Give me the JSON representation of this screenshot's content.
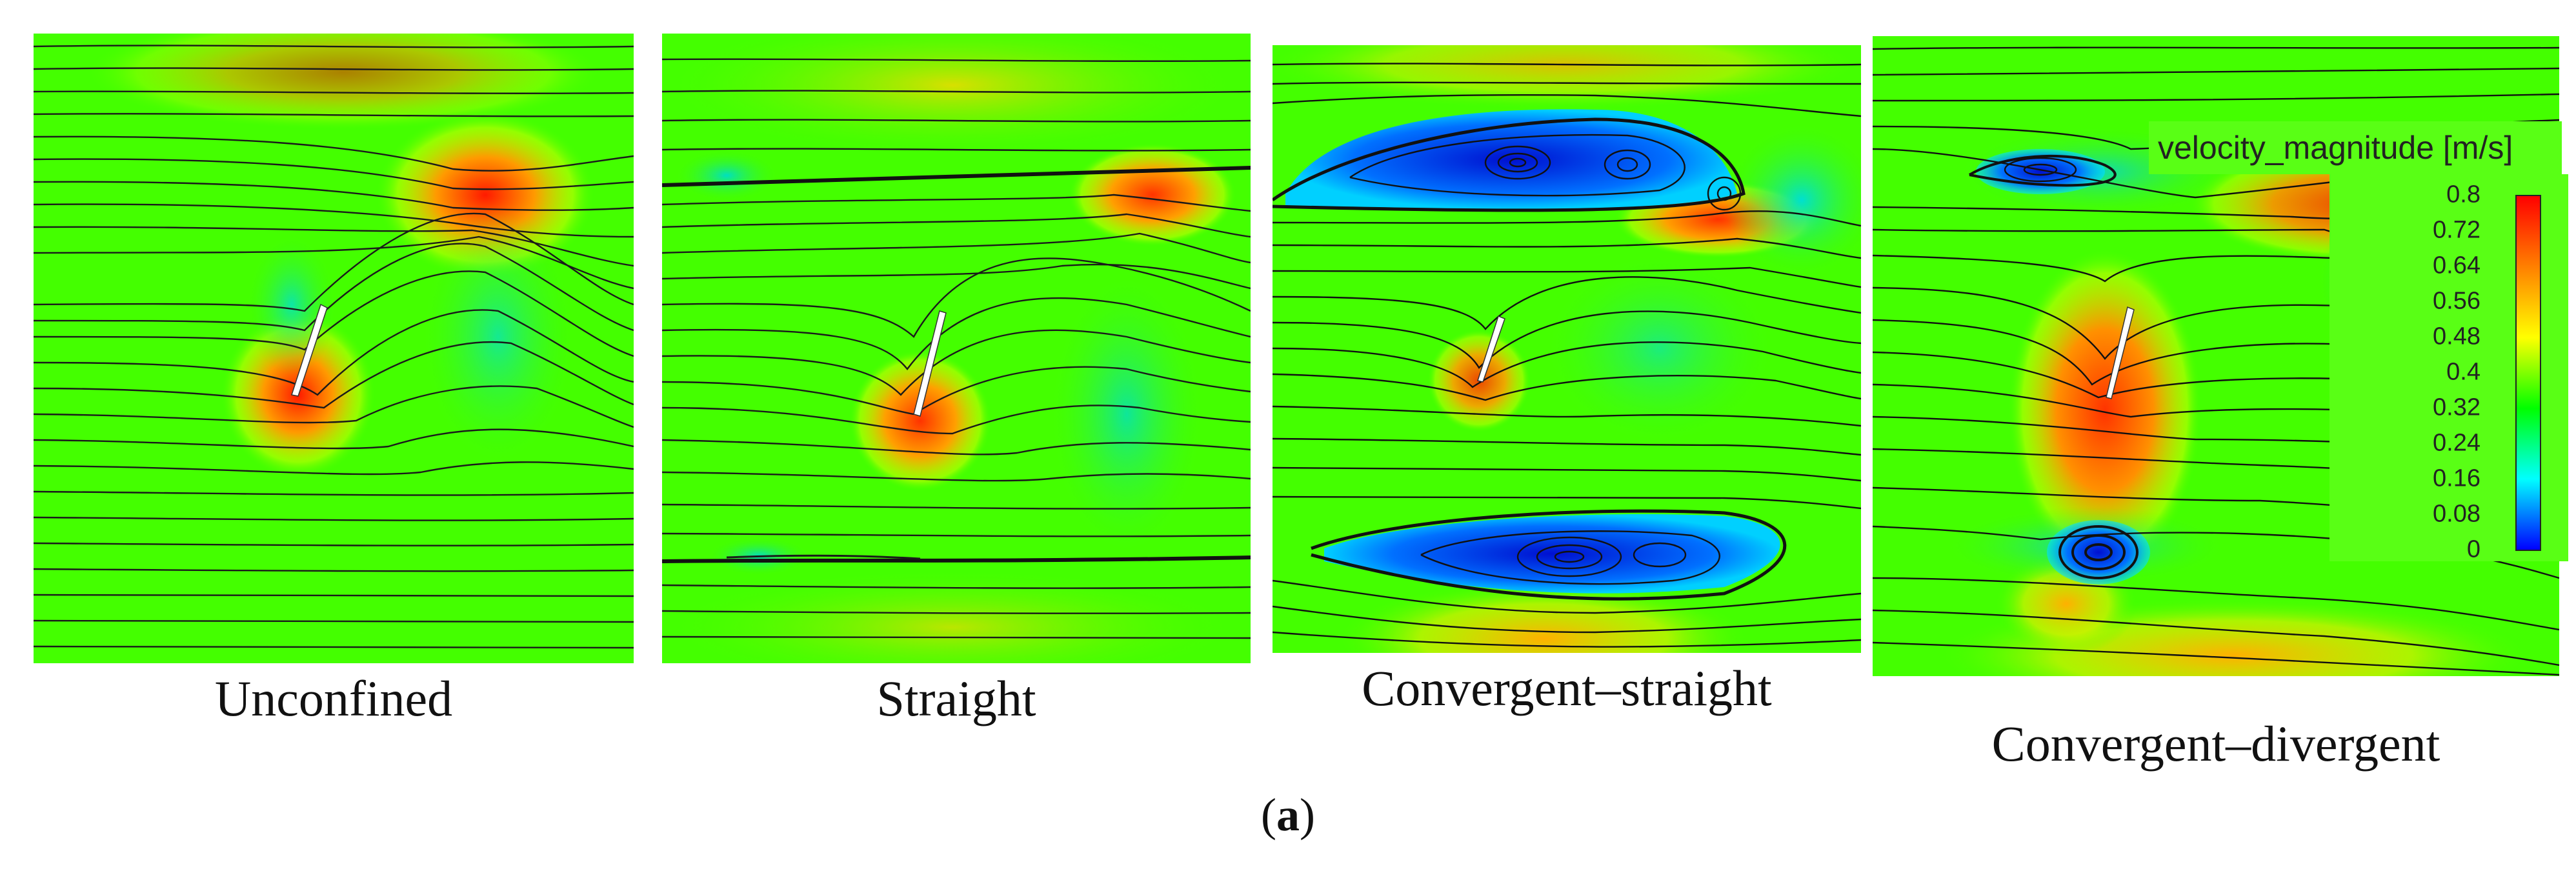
{
  "panels": [
    {
      "caption": "Unconfined"
    },
    {
      "caption": "Straight"
    },
    {
      "caption": "Convergent–straight"
    },
    {
      "caption": "Convergent–divergent"
    }
  ],
  "figure_label": "a",
  "legend": {
    "title": "velocity_magnitude [m/s]",
    "ticks": [
      "0.8",
      "0.72",
      "0.64",
      "0.56",
      "0.48",
      "0.4",
      "0.32",
      "0.24",
      "0.16",
      "0.08",
      "0"
    ],
    "colors": [
      "#ff0000",
      "#ff8000",
      "#ffff00",
      "#00ff00",
      "#00ffff",
      "#0000ff"
    ]
  }
}
